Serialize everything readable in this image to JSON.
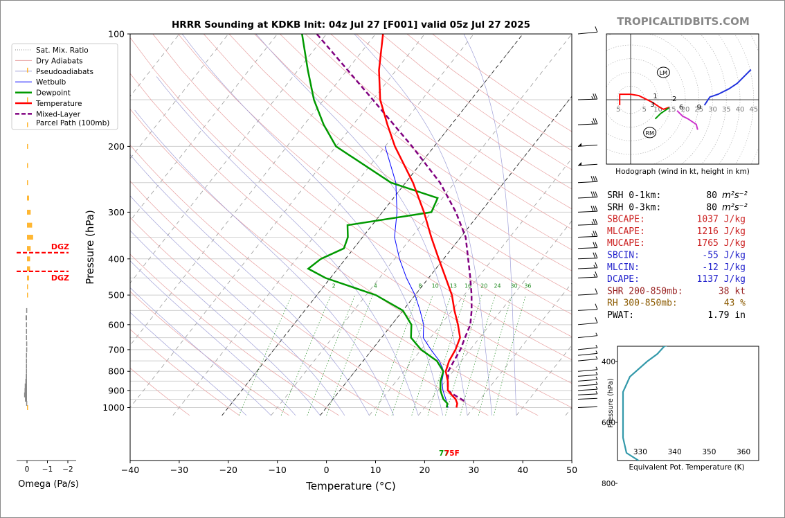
{
  "header": {
    "title": "HRRR Sounding at KDKB Init: 04z Jul 27 [F001] valid 05z Jul 27 2025",
    "watermark": "TROPICALTIDBITS.COM"
  },
  "colors": {
    "temperature": "#ff0000",
    "dewpoint": "#009900",
    "wetbulb": "#0000ff",
    "parcel": "#800080",
    "dry_adiabat": "#e8a0a0",
    "moist_adiabat": "#a0a0d8",
    "mixing_ratio": "#228b22",
    "omega_positive": "#ffb733",
    "omega_negative": "#888888",
    "hodo_low": "#ff0000",
    "hodo_mid": "#009900",
    "hodo_high": "#cc33cc",
    "hodo_upper": "#2233dd",
    "theta_e": "#3399aa"
  },
  "skewt": {
    "xlabel": "Temperature (°C)",
    "ylabel": "Pressure (hPa)",
    "x_ticks": [
      "−40",
      "−30",
      "−20",
      "−10",
      "0",
      "10",
      "20",
      "30",
      "40",
      "50"
    ],
    "y_ticks": [
      "100",
      "200",
      "300",
      "400",
      "500",
      "600",
      "700",
      "800",
      "900",
      "1000"
    ],
    "legend": [
      "Sat. Mix. Ratio",
      "Dry Adiabats",
      "Pseudoadiabats",
      "Wetbulb",
      "Dewpoint",
      "Temperature",
      "Mixed-Layer",
      "Parcel Path (100mb)"
    ],
    "surface_label": "77",
    "surface_label_t": "75F",
    "mixing_ratio_labels": [
      "2",
      "4",
      "8",
      "10",
      "13",
      "16",
      "20",
      "24",
      "30",
      "36"
    ]
  },
  "omega": {
    "xlabel": "Omega (Pa/s)",
    "ticks": [
      "0",
      "−1",
      "−2"
    ],
    "dgz_label": "DGZ"
  },
  "hodograph": {
    "caption": "Hodograph (wind in kt, height in km)",
    "ring_labels": [
      "5",
      "10",
      "15",
      "20",
      "25",
      "30",
      "35",
      "40",
      "45"
    ],
    "west_label": "5",
    "lm_label": "LM",
    "rm_label": "RM",
    "height_labels": [
      "1",
      "2",
      "3",
      "6",
      "9"
    ]
  },
  "indices": [
    {
      "label": "SRH 0-1km:",
      "value": "80",
      "unit": "m²s⁻²",
      "color": "#000000"
    },
    {
      "label": "SRH 0-3km:",
      "value": "80",
      "unit": "m²s⁻²",
      "color": "#000000"
    },
    {
      "label": "SBCAPE:",
      "value": "1037 J/kg",
      "unit": "",
      "color": "#cc2222"
    },
    {
      "label": "MLCAPE:",
      "value": "1216 J/kg",
      "unit": "",
      "color": "#cc2222"
    },
    {
      "label": "MUCAPE:",
      "value": "1765 J/kg",
      "unit": "",
      "color": "#cc2222"
    },
    {
      "label": "SBCIN:",
      "value": "-55 J/kg",
      "unit": "",
      "color": "#2222cc"
    },
    {
      "label": "MLCIN:",
      "value": "-12 J/kg",
      "unit": "",
      "color": "#2222cc"
    },
    {
      "label": "DCAPE:",
      "value": "1137 J/kg",
      "unit": "",
      "color": "#2222cc"
    },
    {
      "label": "SHR 200-850mb:",
      "value": "38 kt",
      "unit": "",
      "color": "#992222"
    },
    {
      "label": "RH 300-850mb:",
      "value": "43 %",
      "unit": "",
      "color": "#8b5a00"
    },
    {
      "label": "PWAT:",
      "value": "1.79 in",
      "unit": "",
      "color": "#000000"
    }
  ],
  "theta_e_panel": {
    "xlabel": "Equivalent Pot. Temperature (K)",
    "ylabel": "Pressure (hPa)",
    "x_ticks": [
      "330",
      "340",
      "350",
      "360"
    ],
    "y_ticks": [
      "400",
      "600",
      "800"
    ]
  },
  "chart_data": [
    {
      "type": "line",
      "title": "HRRR Sounding at KDKB Init: 04z Jul 27 [F001] valid 05z Jul 27 2025",
      "xlabel": "Temperature (°C)",
      "ylabel": "Pressure (hPa)",
      "xlim": [
        -40,
        50
      ],
      "ylim": [
        1050,
        100
      ],
      "y_scale": "log",
      "skew": "skew-T log-P",
      "legend_position": "top-left",
      "series": [
        {
          "name": "Temperature",
          "points": [
            [
              1000,
              26.5
            ],
            [
              975,
              26
            ],
            [
              950,
              25
            ],
            [
              925,
              23.5
            ],
            [
              900,
              22
            ],
            [
              850,
              20.5
            ],
            [
              800,
              18.5
            ],
            [
              750,
              17.5
            ],
            [
              700,
              17.0
            ],
            [
              650,
              16.0
            ],
            [
              600,
              13.5
            ],
            [
              550,
              10.5
            ],
            [
              500,
              7.5
            ],
            [
              450,
              3.5
            ],
            [
              400,
              -1.0
            ],
            [
              350,
              -6.0
            ],
            [
              300,
              -11.5
            ],
            [
              250,
              -18.5
            ],
            [
              200,
              -28.0
            ],
            [
              175,
              -33.0
            ],
            [
              150,
              -38.5
            ],
            [
              125,
              -43.5
            ],
            [
              100,
              -48.5
            ]
          ]
        },
        {
          "name": "Dewpoint",
          "points": [
            [
              1000,
              24.5
            ],
            [
              975,
              24
            ],
            [
              950,
              22.5
            ],
            [
              925,
              21.5
            ],
            [
              900,
              20.5
            ],
            [
              850,
              19.0
            ],
            [
              800,
              18.0
            ],
            [
              750,
              15.0
            ],
            [
              700,
              10.0
            ],
            [
              650,
              6.0
            ],
            [
              600,
              4.0
            ],
            [
              550,
              0.0
            ],
            [
              500,
              -8.0
            ],
            [
              450,
              -21.0
            ],
            [
              425,
              -26.0
            ],
            [
              400,
              -25.0
            ],
            [
              375,
              -22.0
            ],
            [
              350,
              -23.0
            ],
            [
              325,
              -25.0
            ],
            [
              300,
              -10.0
            ],
            [
              275,
              -11.0
            ],
            [
              250,
              -23.0
            ],
            [
              200,
              -40.0
            ],
            [
              175,
              -46.0
            ],
            [
              150,
              -52.0
            ],
            [
              125,
              -58.0
            ],
            [
              100,
              -65.0
            ]
          ]
        },
        {
          "name": "Wetbulb",
          "points": [
            [
              1000,
              24.8
            ],
            [
              950,
              23
            ],
            [
              900,
              21
            ],
            [
              850,
              19.3
            ],
            [
              800,
              18.1
            ],
            [
              750,
              15.5
            ],
            [
              700,
              12.0
            ],
            [
              650,
              8.5
            ],
            [
              600,
              6.5
            ],
            [
              550,
              3.5
            ],
            [
              500,
              0.0
            ],
            [
              450,
              -4.5
            ],
            [
              400,
              -9.0
            ],
            [
              350,
              -13.5
            ],
            [
              300,
              -17.0
            ],
            [
              250,
              -22.0
            ],
            [
              200,
              -30.0
            ]
          ]
        },
        {
          "name": "Mixed-Layer Parcel Path (100mb)",
          "points": [
            [
              960,
              27.0
            ],
            [
              925,
              24.0
            ],
            [
              900,
              22.0
            ],
            [
              850,
              20.5
            ],
            [
              800,
              19.0
            ],
            [
              750,
              18.5
            ],
            [
              700,
              18.0
            ],
            [
              650,
              17.0
            ],
            [
              600,
              16.0
            ],
            [
              550,
              14.0
            ],
            [
              500,
              11.5
            ],
            [
              450,
              8.5
            ],
            [
              400,
              5.0
            ],
            [
              350,
              1.0
            ],
            [
              300,
              -5.0
            ],
            [
              250,
              -13.0
            ],
            [
              200,
              -24.5
            ],
            [
              150,
              -40.0
            ],
            [
              100,
              -62.0
            ]
          ]
        }
      ]
    },
    {
      "type": "bar",
      "title": "Omega",
      "xlabel": "Omega (Pa/s)",
      "xlim": [
        1,
        -2.4
      ],
      "ylim": [
        1050,
        100
      ],
      "series": [
        {
          "name": "Omega",
          "points": [
            [
              1000,
              -0.02
            ],
            [
              975,
              0.04
            ],
            [
              950,
              0.1
            ],
            [
              925,
              0.14
            ],
            [
              900,
              0.12
            ],
            [
              875,
              0.11
            ],
            [
              850,
              0.08
            ],
            [
              825,
              0.06
            ],
            [
              800,
              0.05
            ],
            [
              775,
              0.05
            ],
            [
              750,
              0.05
            ],
            [
              725,
              0.05
            ],
            [
              700,
              0.04
            ],
            [
              675,
              0.04
            ],
            [
              650,
              0.05
            ],
            [
              625,
              0.05
            ],
            [
              600,
              0.05
            ],
            [
              575,
              0.07
            ],
            [
              550,
              0.04
            ],
            [
              500,
              -0.03
            ],
            [
              475,
              -0.05
            ],
            [
              450,
              -0.1
            ],
            [
              425,
              -0.15
            ],
            [
              400,
              -0.15
            ],
            [
              375,
              -0.18
            ],
            [
              350,
              -0.3
            ],
            [
              325,
              -0.25
            ],
            [
              300,
              -0.18
            ],
            [
              275,
              -0.1
            ],
            [
              250,
              -0.02
            ],
            [
              225,
              -0.02
            ],
            [
              200,
              -0.02
            ],
            [
              175,
              -0.02
            ],
            [
              150,
              -0.02
            ],
            [
              125,
              -0.02
            ]
          ]
        }
      ],
      "dgz_bounds_hpa": [
        385,
        432
      ]
    },
    {
      "type": "line",
      "title": "Hodograph (wind in kt, height in km)",
      "xlabel": "u (kt)",
      "ylabel": "v (kt)",
      "xlim": [
        -8,
        45
      ],
      "ylim": [
        -25,
        25
      ],
      "series": [
        {
          "name": "0-3 km",
          "points": [
            [
              -4,
              -2
            ],
            [
              -4,
              2
            ],
            [
              0,
              2
            ],
            [
              3,
              1.5
            ],
            [
              8,
              -1
            ],
            [
              11,
              -3
            ],
            [
              12,
              -3.5
            ],
            [
              14,
              -2.8
            ]
          ]
        },
        {
          "name": "3-6 km",
          "points": [
            [
              9,
              -7
            ],
            [
              11,
              -5
            ],
            [
              14,
              -3
            ]
          ]
        },
        {
          "name": "6-9 km",
          "points": [
            [
              17,
              -4
            ],
            [
              19,
              -6
            ],
            [
              21,
              -7
            ],
            [
              24,
              -9
            ],
            [
              24.5,
              -11
            ]
          ]
        },
        {
          "name": "9+ km",
          "points": [
            [
              27,
              -2
            ],
            [
              29,
              1
            ],
            [
              32,
              2
            ],
            [
              36,
              4
            ],
            [
              39,
              6
            ],
            [
              42,
              9
            ],
            [
              44,
              11
            ]
          ]
        }
      ],
      "markers": [
        {
          "name": "LM",
          "u": 12,
          "v": 10
        },
        {
          "name": "RM",
          "u": 7,
          "v": -12
        }
      ]
    },
    {
      "type": "line",
      "title": "Equivalent Pot. Temperature",
      "xlabel": "Equivalent Pot. Temperature (K)",
      "ylabel": "Pressure (hPa)",
      "xlim": [
        324,
        365
      ],
      "ylim": [
        1000,
        300
      ],
      "series": [
        {
          "name": "Theta-E",
          "points": [
            [
              985,
              352
            ],
            [
              975,
              355
            ],
            [
              950,
              354
            ],
            [
              900,
              347
            ],
            [
              850,
              343
            ],
            [
              800,
              342
            ],
            [
              775,
              339
            ],
            [
              750,
              333
            ],
            [
              700,
              326
            ],
            [
              650,
              325
            ],
            [
              600,
              325
            ],
            [
              500,
              325
            ],
            [
              475,
              326
            ],
            [
              450,
              327
            ],
            [
              400,
              332
            ],
            [
              375,
              335
            ],
            [
              350,
              337
            ],
            [
              330,
              344
            ]
          ]
        }
      ]
    }
  ]
}
